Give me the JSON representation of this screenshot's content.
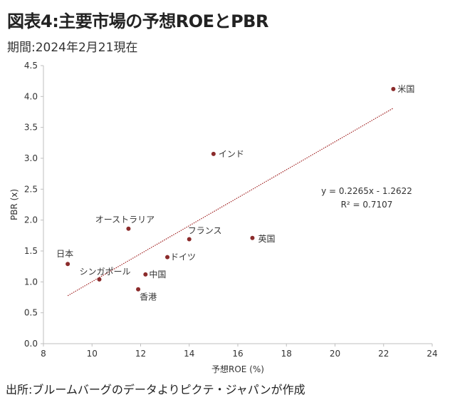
{
  "header": {
    "title": "図表4:主要市場の予想ROEとPBR",
    "subtitle": "期間:2024年2月21現在"
  },
  "footer": {
    "source": "出所:ブルームバーグのデータよりピクテ・ジャパンが作成"
  },
  "colors": {
    "point": "#8b2b2b",
    "trendline": "#a02020",
    "axis": "#bfbfbf",
    "text": "#333333"
  },
  "chart_data": {
    "type": "scatter",
    "title": "",
    "xlabel": "予想ROE (%)",
    "ylabel": "PBR (x)",
    "xlim": [
      8,
      24
    ],
    "ylim": [
      0.0,
      4.5
    ],
    "x_ticks": [
      "8",
      "10",
      "12",
      "14",
      "16",
      "18",
      "20",
      "22",
      "24"
    ],
    "y_ticks": [
      "0.0",
      "0.5",
      "1.0",
      "1.5",
      "2.0",
      "2.5",
      "3.0",
      "3.5",
      "4.0",
      "4.5"
    ],
    "grid": false,
    "points": [
      {
        "label": "米国",
        "x": 22.4,
        "y": 4.12
      },
      {
        "label": "インド",
        "x": 15.0,
        "y": 3.07
      },
      {
        "label": "オーストラリア",
        "x": 11.5,
        "y": 1.86
      },
      {
        "label": "フランス",
        "x": 14.0,
        "y": 1.69
      },
      {
        "label": "英国",
        "x": 16.6,
        "y": 1.71
      },
      {
        "label": "日本",
        "x": 9.0,
        "y": 1.29
      },
      {
        "label": "ドイツ",
        "x": 13.1,
        "y": 1.4
      },
      {
        "label": "シンガポール",
        "x": 10.3,
        "y": 1.04
      },
      {
        "label": "中国",
        "x": 12.2,
        "y": 1.12
      },
      {
        "label": "香港",
        "x": 11.9,
        "y": 0.88
      }
    ],
    "trendline": {
      "slope": 0.2265,
      "intercept": -1.2622,
      "x_range": [
        9.0,
        22.4
      ],
      "equation": "y = 0.2265x - 1.2622",
      "r_squared": "R² = 0.7107"
    }
  }
}
